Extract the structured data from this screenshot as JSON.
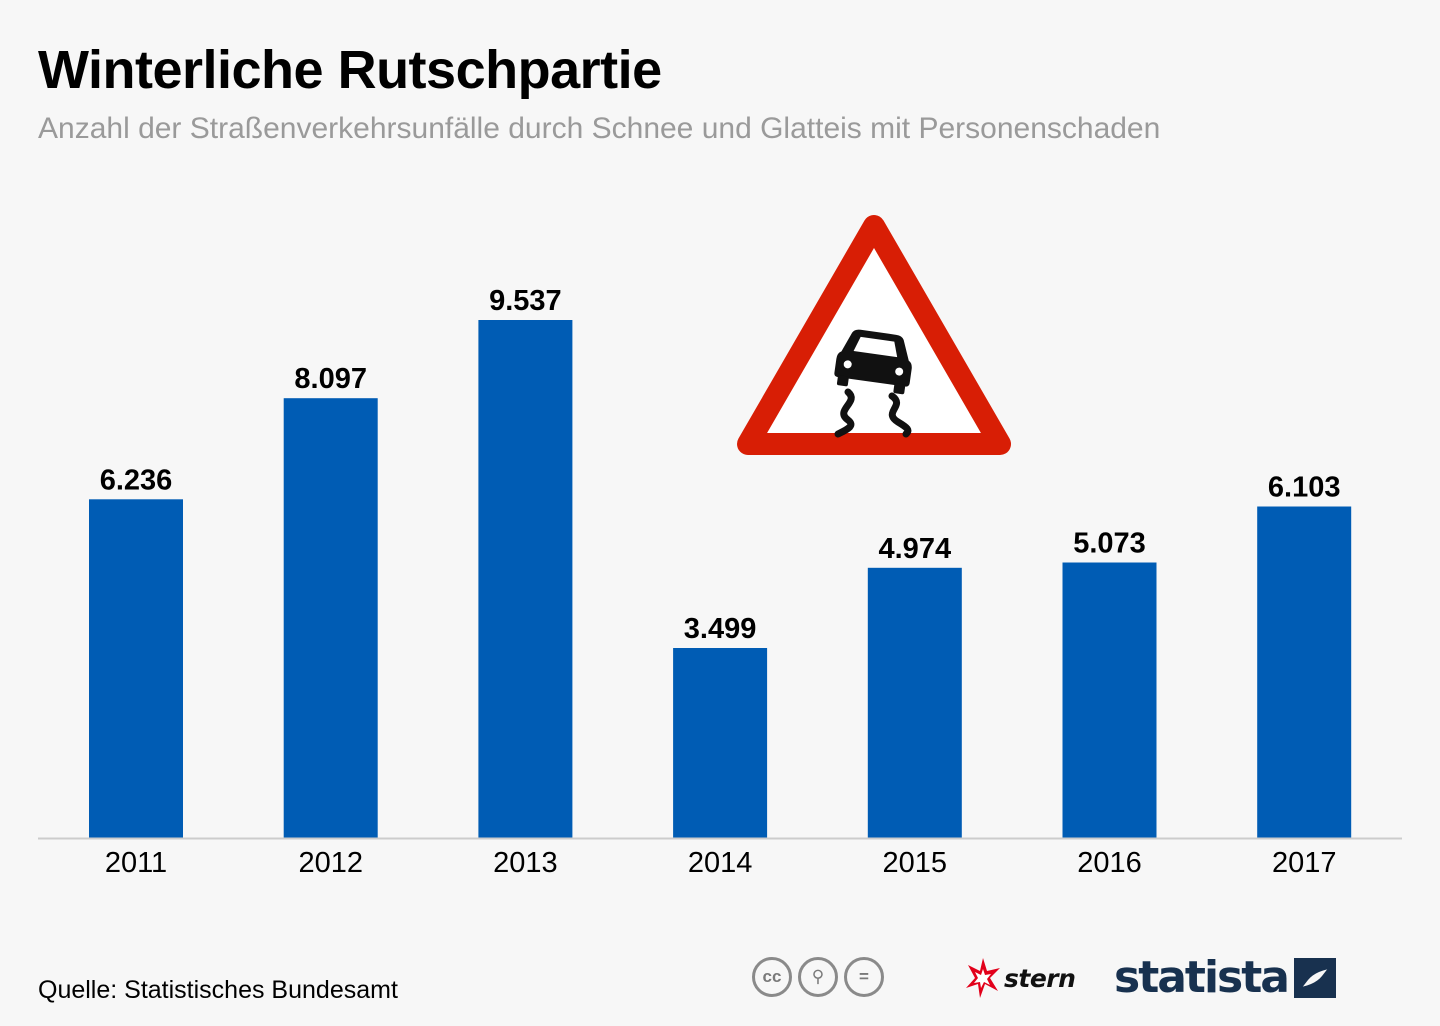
{
  "header": {
    "title": "Winterliche Rutschpartie",
    "subtitle": "Anzahl der Straßenverkehrsunfälle durch Schnee und Glatteis mit Personenschaden"
  },
  "chart_data": {
    "type": "bar",
    "title": "Winterliche Rutschpartie",
    "subtitle": "Anzahl der Straßenverkehrsunfälle durch Schnee und Glatteis mit Personenschaden",
    "categories": [
      "2011",
      "2012",
      "2013",
      "2014",
      "2015",
      "2016",
      "2017"
    ],
    "values": [
      6236,
      8097,
      9537,
      3499,
      4974,
      5073,
      6103
    ],
    "value_labels": [
      "6.236",
      "8.097",
      "9.537",
      "3.499",
      "4.974",
      "5.073",
      "6.103"
    ],
    "xlabel": "",
    "ylabel": "",
    "ylim": [
      0,
      9537
    ],
    "grid": false,
    "bar_color": "#005cb4",
    "axis_color": "#cccccc"
  },
  "decoration": {
    "sign_icon": "slippery-road-warning-icon",
    "sign_border_color": "#d81e05",
    "sign_fill_color": "#ffffff"
  },
  "footer": {
    "source": "Quelle: Statistisches Bundesamt",
    "license_icons": [
      "cc-icon",
      "by-icon",
      "nd-icon"
    ],
    "license_glyphs": [
      "cc",
      "⚲",
      "="
    ],
    "stern_label": "stern",
    "statista_label": "statista",
    "brand_color": "#18314f",
    "stern_color": "#e2001a"
  }
}
